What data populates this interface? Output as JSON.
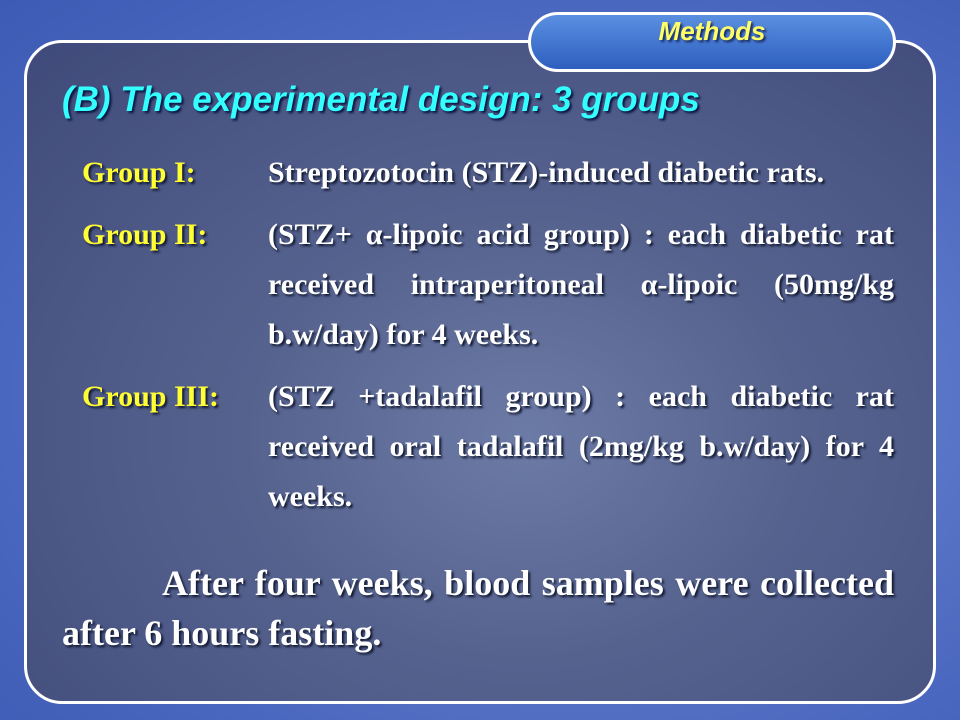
{
  "section_tab": "Methods",
  "title": "(B) The experimental design: 3 groups",
  "groups": [
    {
      "label": "Group I:",
      "text": "Streptozotocin (STZ)-induced diabetic rats."
    },
    {
      "label": "Group II:",
      "text": "(STZ+ α-lipoic acid group) : each diabetic rat received intraperitoneal α-lipoic (50mg/kg b.w/day) for 4 weeks."
    },
    {
      "label": "Group III:",
      "text": "(STZ +tadalafil group) : each diabetic rat received oral tadalafil (2mg/kg b.w/day) for 4 weeks."
    }
  ],
  "conclusion": "After four weeks, blood samples were collected after 6 hours fasting."
}
